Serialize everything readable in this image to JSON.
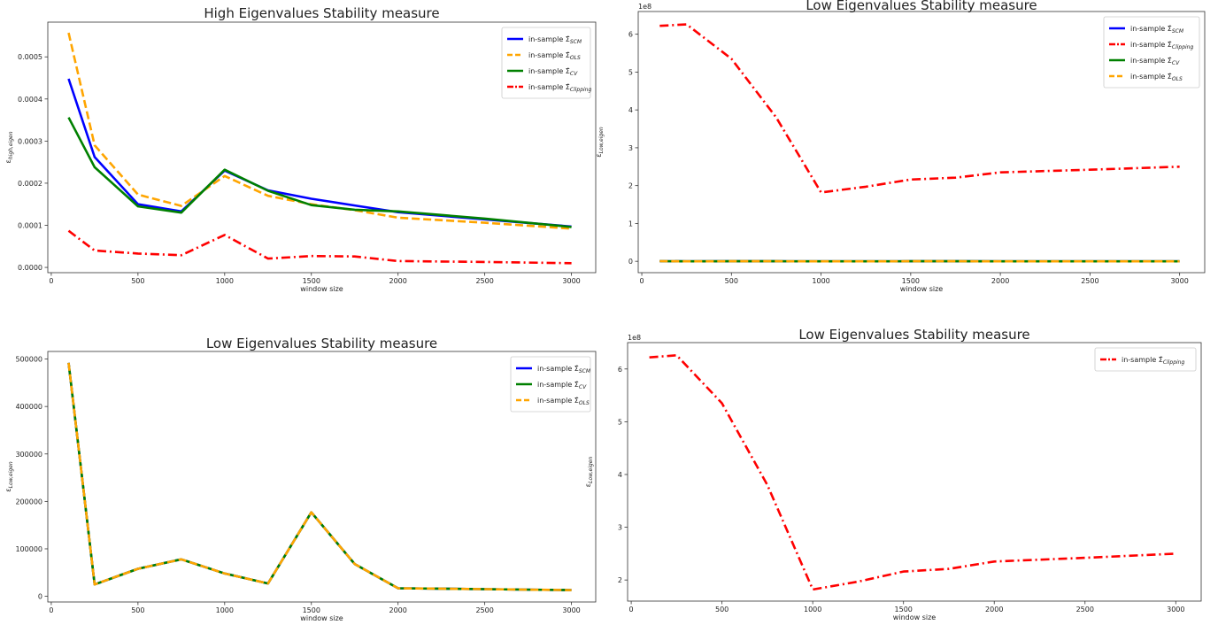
{
  "chart_data": [
    {
      "type": "line",
      "title": "High Eigenvalues Stability measure",
      "xlabel": "window size",
      "ylabel": "ε_{high,eigen}",
      "ylabel_text": "ε",
      "ylabel_sub": "high,eigen",
      "offset_label": "",
      "xlim": [
        -20,
        3140
      ],
      "ylim": [
        -1.25e-05,
        0.0005825
      ],
      "xticks": [
        0,
        500,
        1000,
        1500,
        2000,
        2500,
        3000
      ],
      "yticks": [
        0,
        0.0001,
        0.0002,
        0.0003,
        0.0004,
        0.0005
      ],
      "ytick_labels": [
        "0.0000",
        "0.0001",
        "0.0002",
        "0.0003",
        "0.0004",
        "0.0005"
      ],
      "legend_position": "upper right",
      "series": [
        {
          "name": "in-sample Σ̂_{SCM}",
          "legend_main": "in-sample Σ̂",
          "legend_sub": "SCM",
          "color": "#0000ff",
          "dash": "solid",
          "x": [
            100,
            250,
            500,
            750,
            1000,
            1250,
            1500,
            1750,
            2000,
            2500,
            3000
          ],
          "y": [
            0.000448,
            0.000262,
            0.00015,
            0.000133,
            0.00023,
            0.000183,
            0.000163,
            0.000147,
            0.000131,
            0.000114,
            9.7e-05
          ]
        },
        {
          "name": "in-sample Σ̂_{OLS}",
          "legend_main": "in-sample Σ̂",
          "legend_sub": "OLS",
          "color": "#ffa500",
          "dash": "dashed",
          "x": [
            100,
            250,
            500,
            750,
            1000,
            1250,
            1500,
            1750,
            2000,
            2500,
            3000
          ],
          "y": [
            0.000557,
            0.00029,
            0.000173,
            0.000146,
            0.000217,
            0.00017,
            0.00015,
            0.000136,
            0.000118,
            0.000106,
            9.2e-05
          ]
        },
        {
          "name": "in-sample Σ̂_{CV}",
          "legend_main": "in-sample Σ̂",
          "legend_sub": "CV",
          "color": "#008000",
          "dash": "solid",
          "x": [
            100,
            250,
            500,
            750,
            1000,
            1250,
            1500,
            1750,
            2000,
            2500,
            3000
          ],
          "y": [
            0.000356,
            0.000238,
            0.000145,
            0.00013,
            0.000232,
            0.000182,
            0.000148,
            0.000137,
            0.000133,
            0.000116,
            9.6e-05
          ]
        },
        {
          "name": "in-sample Σ̂_{Clipping}",
          "legend_main": "in-sample Σ̂",
          "legend_sub": "Clipping",
          "color": "#ff0000",
          "dash": "dashdot",
          "x": [
            100,
            250,
            500,
            750,
            1000,
            1250,
            1500,
            1750,
            2000,
            2500,
            3000
          ],
          "y": [
            8.7e-05,
            4e-05,
            3.3e-05,
            2.9e-05,
            7.7e-05,
            2.1e-05,
            2.7e-05,
            2.6e-05,
            1.5e-05,
            1.3e-05,
            1e-05
          ]
        }
      ]
    },
    {
      "type": "line",
      "title": "Low Eigenvalues Stability measure",
      "xlabel": "window size",
      "ylabel": "ε_{Low,eigen}",
      "ylabel_text": "ε",
      "ylabel_sub": "Low,eigen",
      "offset_label": "1e8",
      "xlim": [
        -20,
        3140
      ],
      "ylim": [
        -0.3,
        6.6
      ],
      "xticks": [
        0,
        500,
        1000,
        1500,
        2000,
        2500,
        3000
      ],
      "yticks": [
        0,
        1,
        2,
        3,
        4,
        5,
        6
      ],
      "ytick_labels": [
        "0",
        "1",
        "2",
        "3",
        "4",
        "5",
        "6"
      ],
      "legend_position": "upper right",
      "series": [
        {
          "name": "in-sample Σ̂_{SCM}",
          "legend_main": "in-sample Σ̂",
          "legend_sub": "SCM",
          "color": "#0000ff",
          "dash": "solid",
          "x": [
            100,
            250,
            500,
            750,
            1000,
            1250,
            1500,
            1750,
            2000,
            2500,
            3000
          ],
          "y": [
            0.0049,
            0.0002,
            0.0006,
            0.0008,
            0.0005,
            0.0003,
            0.0018,
            0.0007,
            0.0002,
            0.0002,
            0.0001
          ]
        },
        {
          "name": "in-sample Σ̂_{Clipping}",
          "legend_main": "in-sample Σ̂",
          "legend_sub": "Clipping",
          "color": "#ff0000",
          "dash": "dashdot",
          "x": [
            100,
            250,
            500,
            750,
            1000,
            1250,
            1500,
            1750,
            2000,
            2500,
            3000
          ],
          "y": [
            6.22,
            6.26,
            5.35,
            3.8,
            1.82,
            1.97,
            2.16,
            2.21,
            2.35,
            2.42,
            2.5
          ]
        },
        {
          "name": "in-sample Σ̂_{CV}",
          "legend_main": "in-sample Σ̂",
          "legend_sub": "CV",
          "color": "#008000",
          "dash": "solid",
          "x": [
            100,
            250,
            500,
            750,
            1000,
            1250,
            1500,
            1750,
            2000,
            2500,
            3000
          ],
          "y": [
            0.0049,
            0.0002,
            0.0006,
            0.0008,
            0.0005,
            0.0003,
            0.0018,
            0.0007,
            0.0002,
            0.0002,
            0.0001
          ]
        },
        {
          "name": "in-sample Σ̂_{OLS}",
          "legend_main": "in-sample Σ̂",
          "legend_sub": "OLS",
          "color": "#ffa500",
          "dash": "dashed",
          "x": [
            100,
            250,
            500,
            750,
            1000,
            1250,
            1500,
            1750,
            2000,
            2500,
            3000
          ],
          "y": [
            0.0049,
            0.0002,
            0.0006,
            0.0008,
            0.0005,
            0.0003,
            0.0018,
            0.0007,
            0.0002,
            0.0002,
            0.0001
          ]
        }
      ]
    },
    {
      "type": "line",
      "title": "Low Eigenvalues Stability measure",
      "xlabel": "window size",
      "ylabel": "ε_{Low,eigen}",
      "ylabel_text": "ε",
      "ylabel_sub": "Low,eigen",
      "offset_label": "",
      "xlim": [
        -20,
        3140
      ],
      "ylim": [
        -12000,
        516000
      ],
      "xticks": [
        0,
        500,
        1000,
        1500,
        2000,
        2500,
        3000
      ],
      "yticks": [
        0,
        100000,
        200000,
        300000,
        400000,
        500000
      ],
      "ytick_labels": [
        "0",
        "100000",
        "200000",
        "300000",
        "400000",
        "500000"
      ],
      "legend_position": "upper right",
      "series": [
        {
          "name": "in-sample Σ̂_{SCM}",
          "legend_main": "in-sample Σ̂",
          "legend_sub": "SCM",
          "color": "#0000ff",
          "dash": "solid",
          "x": [
            100,
            250,
            500,
            750,
            1000,
            1250,
            1500,
            1750,
            2000,
            2500,
            3000
          ],
          "y": [
            492000,
            25000,
            58000,
            78000,
            48000,
            27000,
            177000,
            68000,
            17000,
            15000,
            13000
          ]
        },
        {
          "name": "in-sample Σ̂_{CV}",
          "legend_main": "in-sample Σ̂",
          "legend_sub": "CV",
          "color": "#008000",
          "dash": "solid",
          "x": [
            100,
            250,
            500,
            750,
            1000,
            1250,
            1500,
            1750,
            2000,
            2500,
            3000
          ],
          "y": [
            492000,
            25000,
            58000,
            78000,
            48000,
            27000,
            177000,
            68000,
            17000,
            15000,
            13000
          ]
        },
        {
          "name": "in-sample Σ̂_{OLS}",
          "legend_main": "in-sample Σ̂",
          "legend_sub": "OLS",
          "color": "#ffa500",
          "dash": "dashed",
          "x": [
            100,
            250,
            500,
            750,
            1000,
            1250,
            1500,
            1750,
            2000,
            2500,
            3000
          ],
          "y": [
            492000,
            25000,
            58000,
            78000,
            48000,
            27000,
            177000,
            68000,
            17000,
            15000,
            13000
          ]
        }
      ]
    },
    {
      "type": "line",
      "title": "Low Eigenvalues Stability measure",
      "xlabel": "window size",
      "ylabel": "ε_{Low,eigen}",
      "ylabel_text": "ε",
      "ylabel_sub": "Low,eigen",
      "offset_label": "1e8",
      "xlim": [
        -20,
        3140
      ],
      "ylim": [
        1.6,
        6.5
      ],
      "xticks": [
        0,
        500,
        1000,
        1500,
        2000,
        2500,
        3000
      ],
      "yticks": [
        2,
        3,
        4,
        5,
        6
      ],
      "ytick_labels": [
        "2",
        "3",
        "4",
        "5",
        "6"
      ],
      "legend_position": "upper right",
      "series": [
        {
          "name": "in-sample Σ̂_{Clipping}",
          "legend_main": "in-sample Σ̂",
          "legend_sub": "Clipping",
          "color": "#ff0000",
          "dash": "dashdot",
          "x": [
            100,
            250,
            500,
            750,
            1000,
            1250,
            1500,
            1750,
            2000,
            2500,
            3000
          ],
          "y": [
            6.22,
            6.26,
            5.35,
            3.8,
            1.82,
            1.97,
            2.16,
            2.21,
            2.35,
            2.42,
            2.5
          ]
        }
      ]
    }
  ]
}
